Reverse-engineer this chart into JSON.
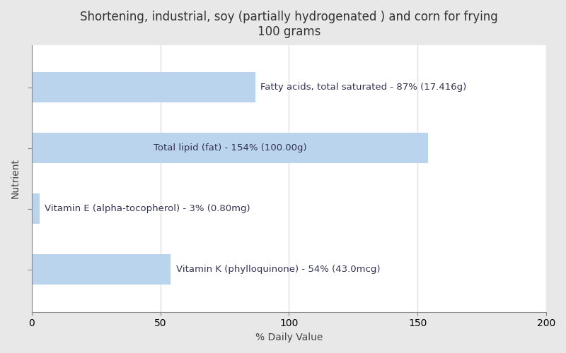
{
  "title_line1": "Shortening, industrial, soy (partially hydrogenated ) and corn for frying",
  "title_line2": "100 grams",
  "xlabel": "% Daily Value",
  "ylabel": "Nutrient",
  "background_color": "#e8e8e8",
  "plot_background_color": "#ffffff",
  "bar_color": "#bad4ed",
  "nutrients": [
    "Fatty acids, total saturated",
    "Total lipid (fat)",
    "Vitamin E (alpha-tocopherol)",
    "Vitamin K (phylloquinone)"
  ],
  "values": [
    87,
    154,
    3,
    54
  ],
  "labels": [
    "Fatty acids, total saturated - 87% (17.416g)",
    "Total lipid (fat) - 154% (100.00g)",
    "Vitamin E (alpha-tocopherol) - 3% (0.80mg)",
    "Vitamin K (phylloquinone) - 54% (43.0mcg)"
  ],
  "label_inside": [
    false,
    true,
    false,
    false
  ],
  "xlim": [
    0,
    200
  ],
  "xticks": [
    0,
    50,
    100,
    150,
    200
  ],
  "title_fontsize": 12,
  "label_fontsize": 9.5,
  "axis_label_fontsize": 10,
  "text_color": "#333355",
  "grid_color": "#e0e0e0",
  "bar_height": 0.5
}
